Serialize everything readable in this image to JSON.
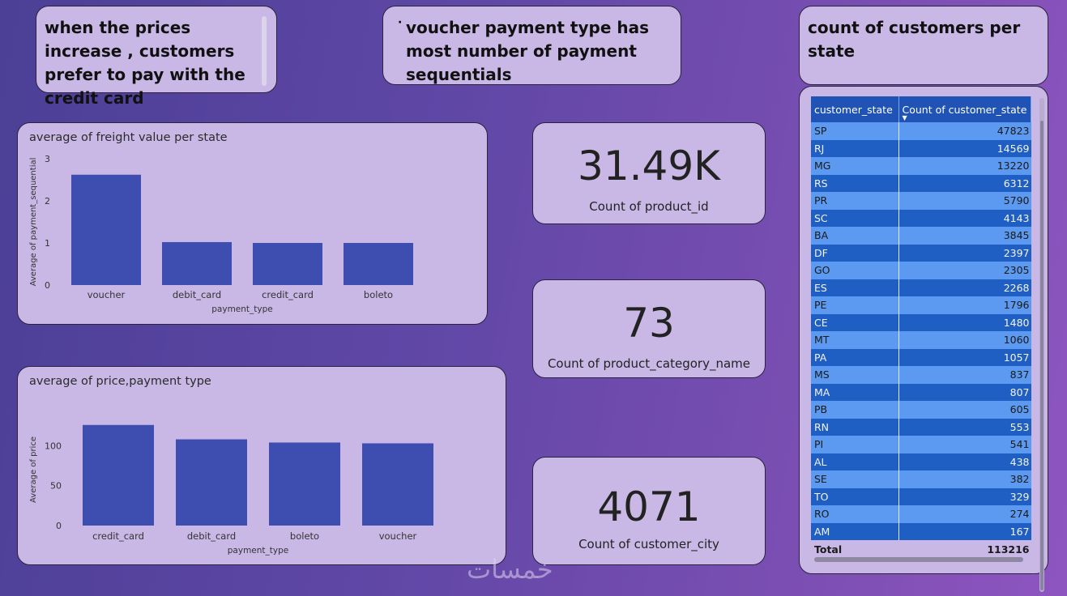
{
  "notes": {
    "credit": "when the prices increase , customers prefer to pay with the credit card",
    "voucher_dot": "·",
    "voucher": "voucher payment type has most number of payment sequentials",
    "customers_state": "count of customers per state"
  },
  "kpis": {
    "products": {
      "value": "31.49K",
      "label": "Count of product_id"
    },
    "categories": {
      "value": "73",
      "label": "Count of product_category_name"
    },
    "cities": {
      "value": "4071",
      "label": "Count of customer_city"
    }
  },
  "chart_data": [
    {
      "type": "bar",
      "title": "average of freight value per state",
      "xlabel": "payment_type",
      "ylabel": "Average of payment_sequential",
      "categories": [
        "voucher",
        "debit_card",
        "credit_card",
        "boleto"
      ],
      "values": [
        2.62,
        1.02,
        1.0,
        1.0
      ],
      "ylim": [
        0,
        3
      ],
      "yticks": [
        "0",
        "1",
        "2",
        "3"
      ],
      "color": "#3d4db0"
    },
    {
      "type": "bar",
      "title": "average of price,payment type",
      "xlabel": "payment_type",
      "ylabel": "Average of price",
      "categories": [
        "credit_card",
        "debit_card",
        "boleto",
        "voucher"
      ],
      "values": [
        126,
        108,
        104,
        103
      ],
      "ylim": [
        0,
        140
      ],
      "yticks": [
        "0",
        "50",
        "100"
      ],
      "color": "#3d4db0"
    }
  ],
  "table": {
    "headers": [
      "customer_state",
      "Count of customer_state"
    ],
    "rows": [
      [
        "SP",
        "47823"
      ],
      [
        "RJ",
        "14569"
      ],
      [
        "MG",
        "13220"
      ],
      [
        "RS",
        "6312"
      ],
      [
        "PR",
        "5790"
      ],
      [
        "SC",
        "4143"
      ],
      [
        "BA",
        "3845"
      ],
      [
        "DF",
        "2397"
      ],
      [
        "GO",
        "2305"
      ],
      [
        "ES",
        "2268"
      ],
      [
        "PE",
        "1796"
      ],
      [
        "CE",
        "1480"
      ],
      [
        "MT",
        "1060"
      ],
      [
        "PA",
        "1057"
      ],
      [
        "MS",
        "837"
      ],
      [
        "MA",
        "807"
      ],
      [
        "PB",
        "605"
      ],
      [
        "RN",
        "553"
      ],
      [
        "PI",
        "541"
      ],
      [
        "AL",
        "438"
      ],
      [
        "SE",
        "382"
      ],
      [
        "TO",
        "329"
      ],
      [
        "RO",
        "274"
      ],
      [
        "AM",
        "167"
      ]
    ],
    "total_label": "Total",
    "total_value": "113216"
  },
  "watermark": "خمسات"
}
